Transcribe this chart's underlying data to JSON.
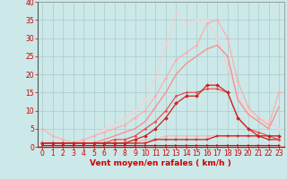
{
  "background_color": "#cce8e8",
  "grid_color": "#aacccc",
  "xlabel": "Vent moyen/en rafales ( km/h )",
  "xlabel_color": "#cc0000",
  "xlabel_fontsize": 6.5,
  "tick_color": "#cc0000",
  "tick_fontsize": 5.5,
  "xlim": [
    -0.5,
    23.5
  ],
  "ylim": [
    0,
    40
  ],
  "yticks": [
    0,
    5,
    10,
    15,
    20,
    25,
    30,
    35,
    40
  ],
  "xticks": [
    0,
    1,
    2,
    3,
    4,
    5,
    6,
    7,
    8,
    9,
    10,
    11,
    12,
    13,
    14,
    15,
    16,
    17,
    18,
    19,
    20,
    21,
    22,
    23
  ],
  "series": [
    {
      "x": [
        0,
        1,
        2,
        3,
        4,
        5,
        6,
        7,
        8,
        9,
        10,
        11,
        12,
        13,
        14,
        15,
        16,
        17,
        18,
        19,
        20,
        21,
        22,
        23
      ],
      "y": [
        0.5,
        0.5,
        0.5,
        0.5,
        0.5,
        0.5,
        0.5,
        0.5,
        0.5,
        0.5,
        0.5,
        0.5,
        0.5,
        0.5,
        0.5,
        0.5,
        0.5,
        0.5,
        0.5,
        0.5,
        0.5,
        0.5,
        0.5,
        0.5
      ],
      "color": "#cc0000",
      "marker": ">",
      "markersize": 1.5,
      "linewidth": 0.7,
      "zorder": 5
    },
    {
      "x": [
        0,
        1,
        2,
        3,
        4,
        5,
        6,
        7,
        8,
        9,
        10,
        11,
        12,
        13,
        14,
        15,
        16,
        17,
        18,
        19,
        20,
        21,
        22,
        23
      ],
      "y": [
        1,
        1,
        1,
        1,
        1,
        1,
        1,
        1,
        1,
        1,
        1,
        2,
        2,
        2,
        2,
        2,
        2,
        3,
        3,
        3,
        3,
        3,
        2,
        2
      ],
      "color": "#cc0000",
      "marker": "+",
      "markersize": 2.5,
      "linewidth": 0.8,
      "zorder": 4
    },
    {
      "x": [
        0,
        1,
        2,
        3,
        4,
        5,
        6,
        7,
        8,
        9,
        10,
        11,
        12,
        13,
        14,
        15,
        16,
        17,
        18,
        19,
        20,
        21,
        22,
        23
      ],
      "y": [
        5,
        3,
        2,
        1,
        1,
        1,
        1,
        1,
        1,
        1,
        2,
        2,
        3,
        3,
        3,
        3,
        3,
        3,
        3,
        3,
        3,
        3,
        3,
        3
      ],
      "color": "#ffaaaa",
      "marker": "D",
      "markersize": 1.5,
      "linewidth": 0.7,
      "zorder": 3
    },
    {
      "x": [
        0,
        1,
        2,
        3,
        4,
        5,
        6,
        7,
        8,
        9,
        10,
        11,
        12,
        13,
        14,
        15,
        16,
        17,
        18,
        19,
        20,
        21,
        22,
        23
      ],
      "y": [
        1,
        1,
        1,
        1,
        1,
        1,
        1,
        1,
        1,
        2,
        3,
        5,
        8,
        12,
        14,
        14,
        17,
        17,
        15,
        8,
        5,
        3,
        3,
        3
      ],
      "color": "#cc2222",
      "marker": "D",
      "markersize": 2.0,
      "linewidth": 0.9,
      "zorder": 5
    },
    {
      "x": [
        0,
        1,
        2,
        3,
        4,
        5,
        6,
        7,
        8,
        9,
        10,
        11,
        12,
        13,
        14,
        15,
        16,
        17,
        18,
        19,
        20,
        21,
        22,
        23
      ],
      "y": [
        1,
        1,
        1,
        1,
        1,
        1,
        1,
        2,
        2,
        3,
        5,
        7,
        10,
        14,
        15,
        15,
        16,
        16,
        15,
        8,
        5,
        4,
        3,
        2
      ],
      "color": "#ee4444",
      "marker": "D",
      "markersize": 1.5,
      "linewidth": 0.8,
      "zorder": 4
    },
    {
      "x": [
        0,
        1,
        2,
        3,
        4,
        5,
        6,
        7,
        8,
        9,
        10,
        11,
        12,
        13,
        14,
        15,
        16,
        17,
        18,
        19,
        20,
        21,
        22,
        23
      ],
      "y": [
        1,
        1,
        1,
        1,
        1,
        1,
        2,
        3,
        4,
        5,
        7,
        11,
        15,
        20,
        23,
        25,
        27,
        28,
        25,
        13,
        9,
        7,
        5,
        11
      ],
      "color": "#ff8888",
      "marker": null,
      "markersize": 0,
      "linewidth": 0.9,
      "zorder": 3
    },
    {
      "x": [
        0,
        1,
        2,
        3,
        4,
        5,
        6,
        7,
        8,
        9,
        10,
        11,
        12,
        13,
        14,
        15,
        16,
        17,
        18,
        19,
        20,
        21,
        22,
        23
      ],
      "y": [
        1,
        1,
        1,
        1,
        2,
        3,
        4,
        5,
        6,
        8,
        10,
        14,
        19,
        24,
        26,
        28,
        34,
        35,
        30,
        18,
        11,
        8,
        6,
        15
      ],
      "color": "#ffaaaa",
      "marker": "D",
      "markersize": 1.5,
      "linewidth": 0.8,
      "zorder": 3
    },
    {
      "x": [
        0,
        1,
        2,
        3,
        4,
        5,
        6,
        7,
        8,
        9,
        10,
        11,
        12,
        13,
        14,
        15,
        16,
        17,
        18,
        19,
        20,
        21,
        22,
        23
      ],
      "y": [
        1,
        1,
        1,
        1,
        2,
        3,
        5,
        6,
        8,
        10,
        13,
        19,
        28,
        37,
        34,
        35,
        35,
        30,
        22,
        14,
        10,
        8,
        7,
        5
      ],
      "color": "#ffcccc",
      "marker": "D",
      "markersize": 1.5,
      "linewidth": 0.7,
      "zorder": 2
    }
  ]
}
